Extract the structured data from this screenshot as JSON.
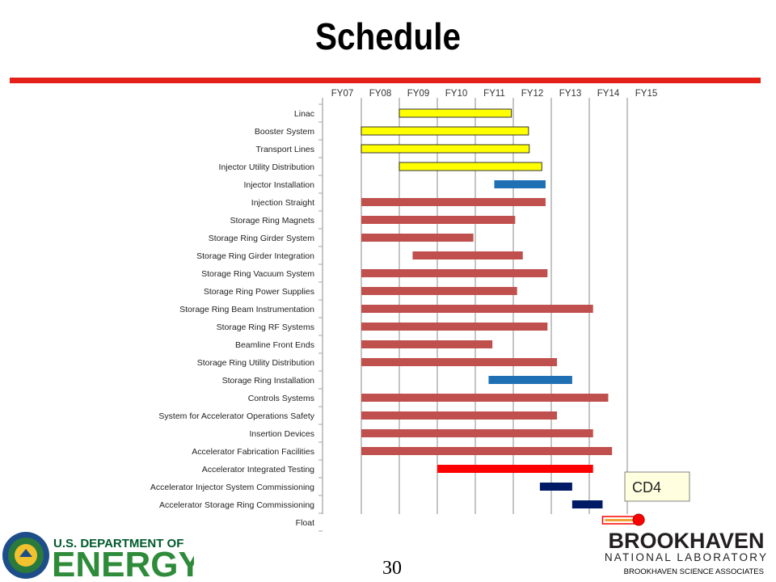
{
  "slide": {
    "title": "Schedule",
    "page_number": "30",
    "accent_color": "#e32119",
    "footer_left_logo": "U.S. DEPARTMENT OF ENERGY",
    "footer_left_seal": "DEPARTMENT OF ENERGY · UNITED STATES OF AMERICA",
    "footer_right_logo_line1": "BROOKHAVEN",
    "footer_right_logo_line2": "NATIONAL LABORATORY",
    "footer_right_text": "BROOKHAVEN SCIENCE ASSOCIATES"
  },
  "chart_data": {
    "type": "gantt",
    "x_ticks": [
      "FY07",
      "FY08",
      "FY09",
      "FY10",
      "FY11",
      "FY12",
      "FY13",
      "FY14",
      "FY15"
    ],
    "x_unit": "fiscal year",
    "xlim": [
      2007,
      2015.5
    ],
    "grid": true,
    "colors": {
      "injector": "#ffff00",
      "installation": "#1f6fb5",
      "storage_ring": "#c0504d",
      "integrated_testing": "#ff0000",
      "commissioning": "#001a66",
      "float": "#f0a030",
      "milestone": "#ff0000"
    },
    "tasks": [
      {
        "label": "Linac",
        "start": 2009.0,
        "end": 2011.95,
        "category": "injector"
      },
      {
        "label": "Booster System",
        "start": 2008.0,
        "end": 2012.4,
        "category": "injector"
      },
      {
        "label": "Transport Lines",
        "start": 2008.0,
        "end": 2012.42,
        "category": "injector"
      },
      {
        "label": "Injector Utility Distribution",
        "start": 2009.0,
        "end": 2012.75,
        "category": "injector"
      },
      {
        "label": "Injector Installation",
        "start": 2011.5,
        "end": 2012.85,
        "category": "installation"
      },
      {
        "label": "Injection Straight",
        "start": 2008.0,
        "end": 2012.85,
        "category": "storage_ring"
      },
      {
        "label": "Storage Ring Magnets",
        "start": 2008.0,
        "end": 2012.05,
        "category": "storage_ring"
      },
      {
        "label": "Storage Ring Girder System",
        "start": 2008.0,
        "end": 2010.95,
        "category": "storage_ring"
      },
      {
        "label": "Storage Ring Girder Integration",
        "start": 2009.35,
        "end": 2012.25,
        "category": "storage_ring"
      },
      {
        "label": "Storage Ring Vacuum System",
        "start": 2008.0,
        "end": 2012.9,
        "category": "storage_ring"
      },
      {
        "label": "Storage Ring Power Supplies",
        "start": 2008.0,
        "end": 2012.1,
        "category": "storage_ring"
      },
      {
        "label": "Storage Ring Beam Instrumentation",
        "start": 2008.0,
        "end": 2014.1,
        "category": "storage_ring"
      },
      {
        "label": "Storage Ring RF Systems",
        "start": 2008.0,
        "end": 2012.9,
        "category": "storage_ring"
      },
      {
        "label": "Beamline Front Ends",
        "start": 2008.0,
        "end": 2011.45,
        "category": "storage_ring"
      },
      {
        "label": "Storage Ring Utility Distribution",
        "start": 2008.0,
        "end": 2013.15,
        "category": "storage_ring"
      },
      {
        "label": "Storage Ring Installation",
        "start": 2011.35,
        "end": 2013.55,
        "category": "installation"
      },
      {
        "label": "Controls Systems",
        "start": 2008.0,
        "end": 2014.5,
        "category": "storage_ring"
      },
      {
        "label": "System for Accelerator Operations Safety",
        "start": 2008.0,
        "end": 2013.15,
        "category": "storage_ring"
      },
      {
        "label": "Insertion Devices",
        "start": 2008.0,
        "end": 2014.1,
        "category": "storage_ring"
      },
      {
        "label": "Accelerator Fabrication Facilities",
        "start": 2008.0,
        "end": 2014.6,
        "category": "storage_ring"
      },
      {
        "label": "Accelerator Integrated Testing",
        "start": 2010.0,
        "end": 2014.1,
        "category": "integrated_testing"
      },
      {
        "label": "Accelerator Injector System Commissioning",
        "start": 2012.7,
        "end": 2013.55,
        "category": "commissioning"
      },
      {
        "label": "Accelerator Storage Ring Commissioning",
        "start": 2013.55,
        "end": 2014.35,
        "category": "commissioning"
      },
      {
        "label": "Float",
        "start": 2014.35,
        "end": 2015.3,
        "category": "float"
      }
    ],
    "milestone": {
      "label": "CD4",
      "x": 2015.3
    }
  }
}
